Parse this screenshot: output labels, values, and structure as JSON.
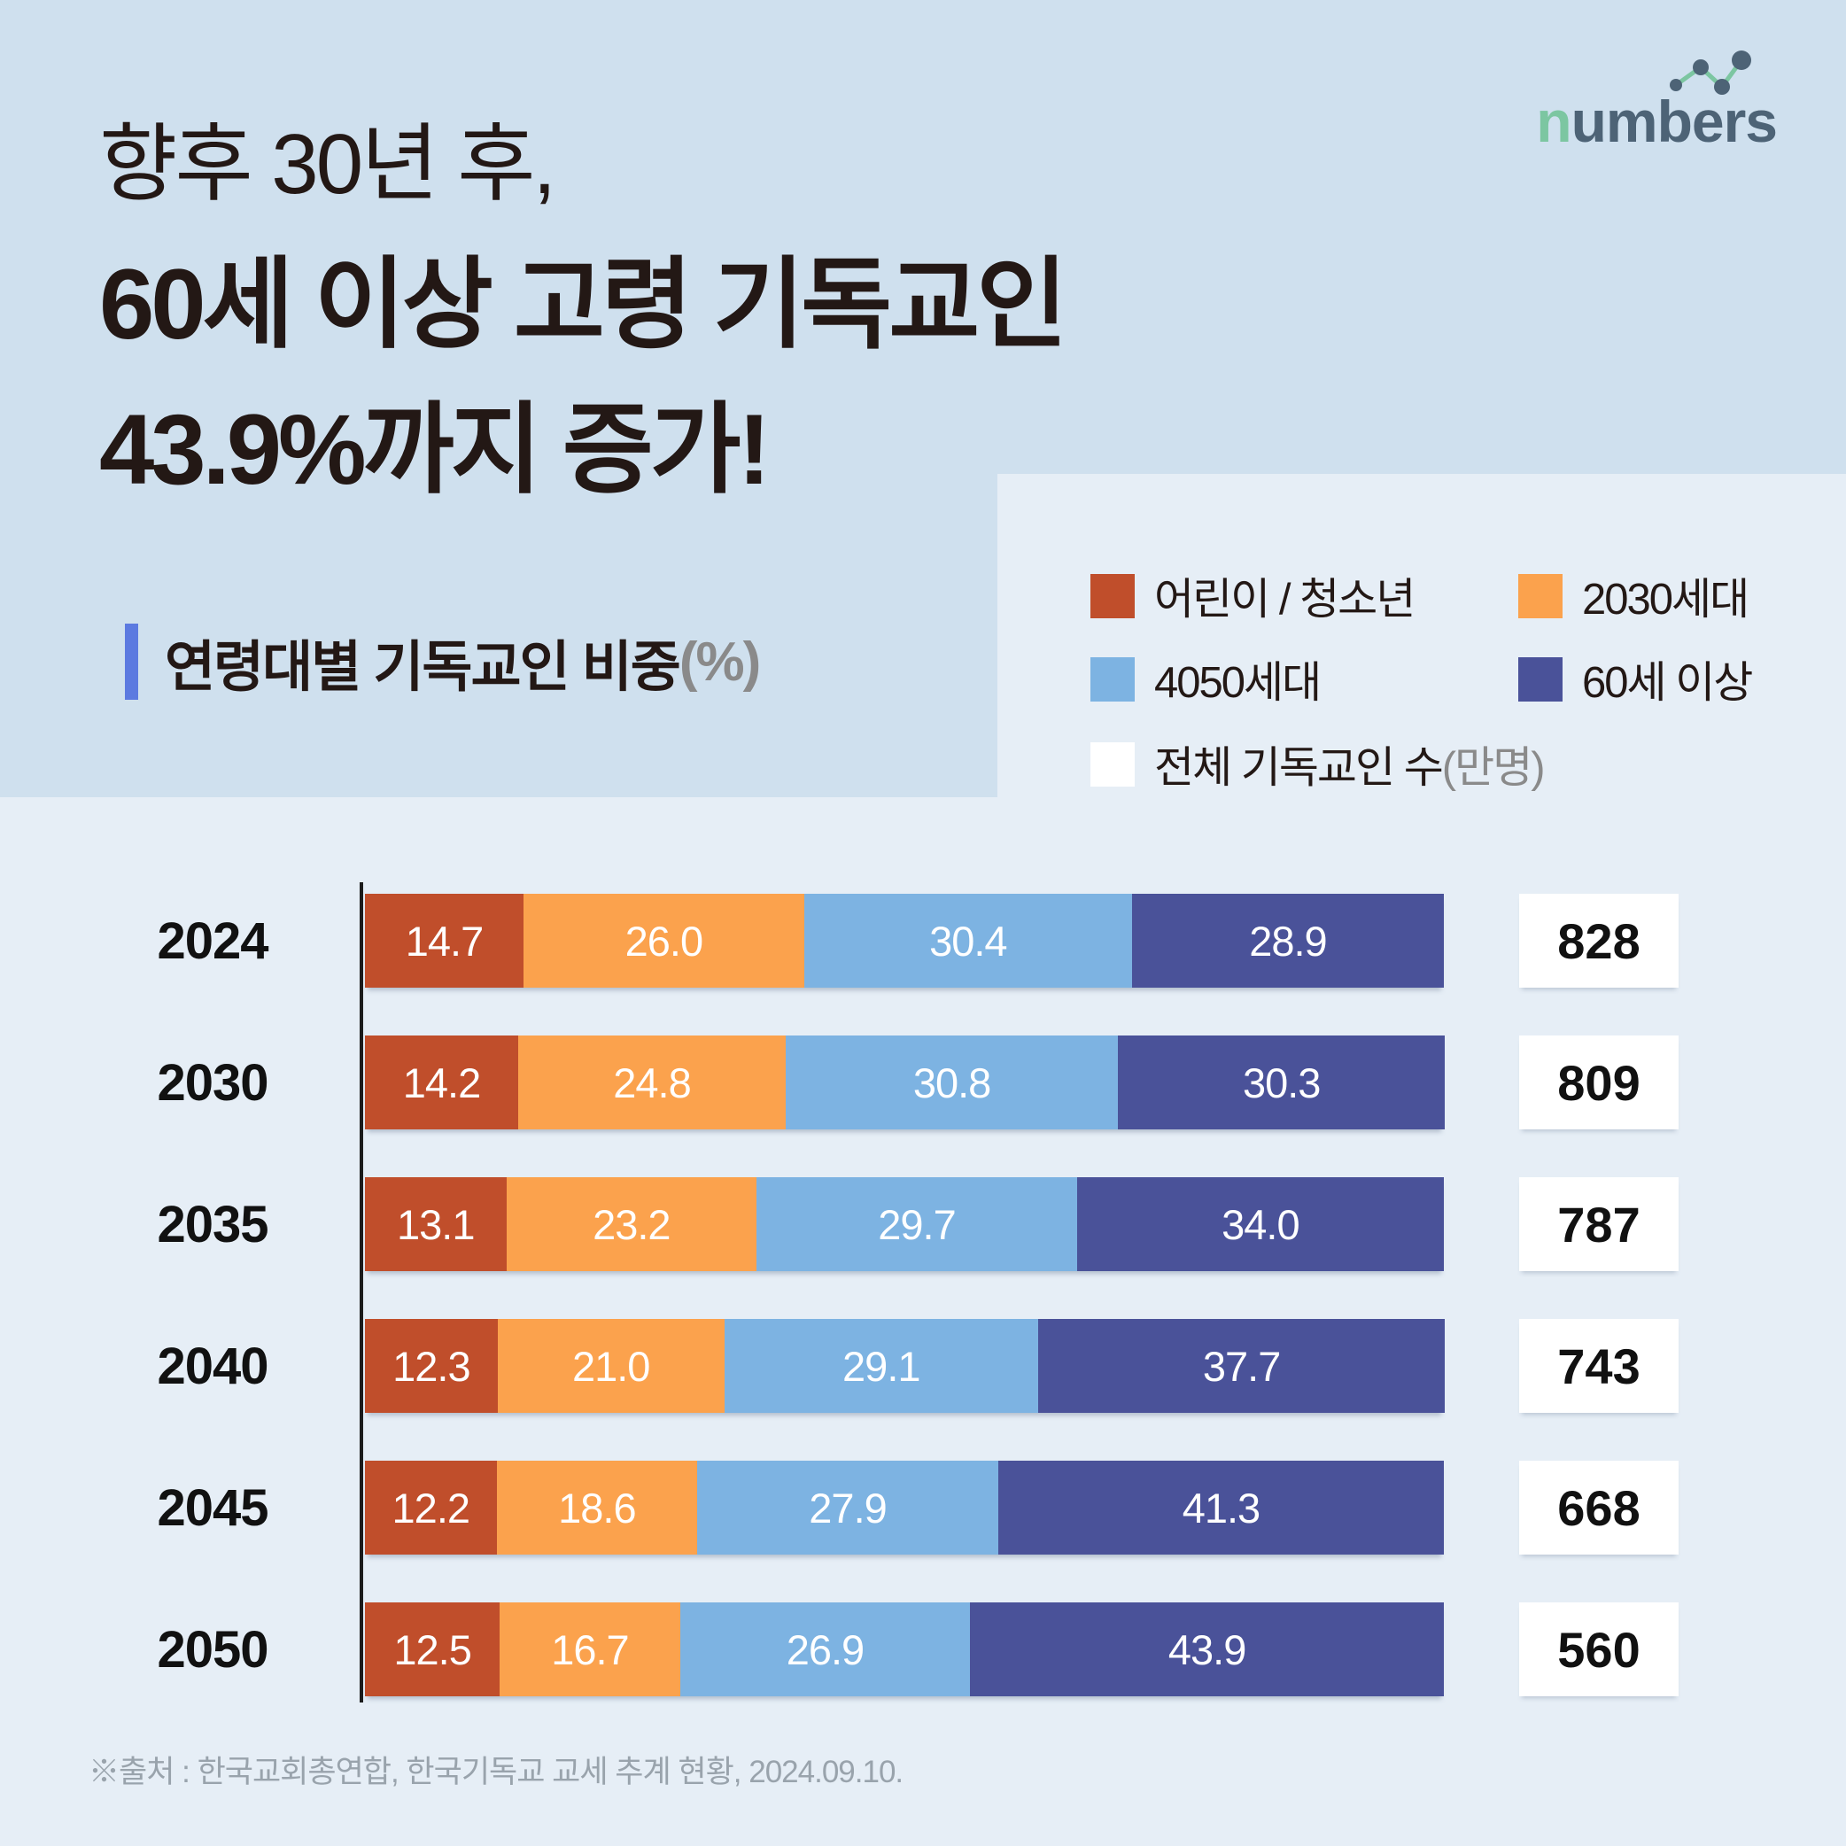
{
  "app": {
    "logo_n": "n",
    "logo_rest": "umbers"
  },
  "header": {
    "title_line1": "향후 30년 후,",
    "title_line2": "60세 이상 고령 기독교인",
    "title_line3": "43.9%까지 증가!"
  },
  "subtitle": {
    "text": "연령대별 기독교인 비중",
    "unit": "(%)"
  },
  "legend": {
    "items": [
      {
        "label": "어린이 / 청소년",
        "color": "#C04E2B"
      },
      {
        "label": "2030세대",
        "color": "#FBA24D"
      },
      {
        "label": "4050세대",
        "color": "#7DB3E2"
      },
      {
        "label": "60세 이상",
        "color": "#4A5299"
      },
      {
        "label": "전체 기독교인 수",
        "unit": "(만명)",
        "color": "#FFFFFF"
      }
    ]
  },
  "chart_data": {
    "type": "bar",
    "orientation": "horizontal-stacked",
    "title": "연령대별 기독교인 비중(%)",
    "categories": [
      "2024",
      "2030",
      "2035",
      "2040",
      "2045",
      "2050"
    ],
    "series": [
      {
        "name": "어린이 / 청소년",
        "color": "#C04E2B",
        "values": [
          14.7,
          14.2,
          13.1,
          12.3,
          12.2,
          12.5
        ]
      },
      {
        "name": "2030세대",
        "color": "#FBA24D",
        "values": [
          26.0,
          24.8,
          23.2,
          21.0,
          18.6,
          16.7
        ]
      },
      {
        "name": "4050세대",
        "color": "#7DB3E2",
        "values": [
          30.4,
          30.8,
          29.7,
          29.1,
          27.9,
          26.9
        ]
      },
      {
        "name": "60세 이상",
        "color": "#4A5299",
        "values": [
          28.9,
          30.3,
          34.0,
          37.7,
          41.3,
          43.9
        ]
      }
    ],
    "totals": {
      "label": "전체 기독교인 수",
      "unit": "만명",
      "values": [
        828,
        809,
        787,
        743,
        668,
        560
      ]
    },
    "xlim": [
      0,
      100
    ],
    "legend_position": "top-right",
    "grid": false
  },
  "footer": {
    "source": "※출처 : 한국교회총연합, 한국기독교 교세 추계 현황, 2024.09.10."
  },
  "colors": {
    "header_background": "#CFE0EE",
    "body_background": "#E6EEF6",
    "accent_bar": "#5C7AE0",
    "logo_green": "#7CC6A1",
    "logo_slate": "#4D6376",
    "gray_text": "#8A8A8A",
    "source_text": "#99A3AC"
  }
}
